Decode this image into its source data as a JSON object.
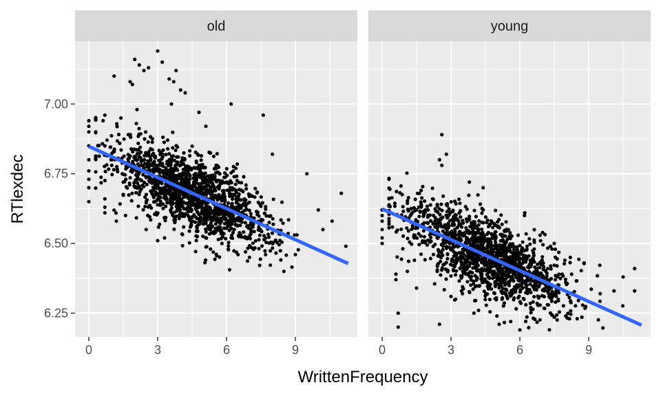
{
  "chart_data": {
    "type": "scatter",
    "xlabel": "WrittenFrequency",
    "ylabel": "RTlexdec",
    "xlim": [
      -0.6,
      11.7
    ],
    "ylim": [
      6.165,
      7.225
    ],
    "x_ticks": [
      0,
      3,
      6,
      9
    ],
    "x_tick_labels": [
      "0",
      "3",
      "6",
      "9"
    ],
    "y_ticks": [
      6.25,
      6.5,
      6.75,
      7.0
    ],
    "y_tick_labels": [
      "6.25",
      "6.50",
      "6.75",
      "7.00"
    ],
    "grid": true,
    "colors": {
      "panel_bg": "#ebebeb",
      "strip_bg": "#d9d9d9",
      "grid": "#ffffff",
      "points": "#000000",
      "fit_line": "#3366ff"
    },
    "panels": [
      {
        "label": "old",
        "fit_line": {
          "x": [
            0,
            11.3
          ],
          "y": [
            6.848,
            6.428
          ]
        },
        "point_cloud": {
          "x_center": 4.6,
          "x_sd": 1.75,
          "y_intercept": 6.848,
          "y_slope": -0.0372,
          "y_sd": 0.068,
          "n": 1500
        },
        "points": [
          [
            0,
            6.94
          ],
          [
            0,
            6.92
          ],
          [
            0,
            6.9
          ],
          [
            0,
            6.85
          ],
          [
            0,
            6.8
          ],
          [
            0,
            6.76
          ],
          [
            0,
            6.73
          ],
          [
            0,
            6.7
          ],
          [
            0,
            6.65
          ],
          [
            0.7,
            6.96
          ],
          [
            0.7,
            6.85
          ],
          [
            0.7,
            6.66
          ],
          [
            0.7,
            6.63
          ],
          [
            0.7,
            6.61
          ],
          [
            1.0,
            6.8
          ],
          [
            1.0,
            6.78
          ],
          [
            1.1,
            7.1
          ],
          [
            1.2,
            6.58
          ],
          [
            1.4,
            6.95
          ],
          [
            1.5,
            6.72
          ],
          [
            1.6,
            6.6
          ],
          [
            1.8,
            7.08
          ],
          [
            1.9,
            7.07
          ],
          [
            2.0,
            7.16
          ],
          [
            2.1,
            6.98
          ],
          [
            2.2,
            7.14
          ],
          [
            2.4,
            7.12
          ],
          [
            2.5,
            6.55
          ],
          [
            2.6,
            7.13
          ],
          [
            3.0,
            7.19
          ],
          [
            3.0,
            6.51
          ],
          [
            3.2,
            7.15
          ],
          [
            3.3,
            6.52
          ],
          [
            3.5,
            7.09
          ],
          [
            3.6,
            7.0
          ],
          [
            3.7,
            7.08
          ],
          [
            3.8,
            7.12
          ],
          [
            4.0,
            7.05
          ],
          [
            4.2,
            7.04
          ],
          [
            4.8,
            6.97
          ],
          [
            5.1,
            6.92
          ],
          [
            5.3,
            6.48
          ],
          [
            5.8,
            6.5
          ],
          [
            6.2,
            7.0
          ],
          [
            6.5,
            6.46
          ],
          [
            7.0,
            6.45
          ],
          [
            7.6,
            6.96
          ],
          [
            7.7,
            6.46
          ],
          [
            8.0,
            6.82
          ],
          [
            8.5,
            6.4
          ],
          [
            9.0,
            6.46
          ],
          [
            9.5,
            6.75
          ],
          [
            10.0,
            6.62
          ],
          [
            10.2,
            6.55
          ],
          [
            10.6,
            6.58
          ],
          [
            11.0,
            6.68
          ],
          [
            11.2,
            6.49
          ]
        ]
      },
      {
        "label": "young",
        "fit_line": {
          "x": [
            0,
            11.3
          ],
          "y": [
            6.624,
            6.207
          ]
        },
        "point_cloud": {
          "x_center": 4.6,
          "x_sd": 1.75,
          "y_intercept": 6.624,
          "y_slope": -0.0369,
          "y_sd": 0.068,
          "n": 1500
        },
        "points": [
          [
            0,
            6.62
          ],
          [
            0,
            6.6
          ],
          [
            0,
            6.58
          ],
          [
            0,
            6.55
          ],
          [
            0,
            6.52
          ],
          [
            0,
            6.5
          ],
          [
            0.6,
            6.39
          ],
          [
            0.6,
            6.37
          ],
          [
            0.7,
            6.25
          ],
          [
            0.7,
            6.2
          ],
          [
            1.1,
            6.4
          ],
          [
            1.2,
            6.58
          ],
          [
            1.4,
            6.52
          ],
          [
            1.5,
            6.62
          ],
          [
            1.5,
            6.34
          ],
          [
            1.7,
            6.69
          ],
          [
            2.0,
            6.62
          ],
          [
            2.2,
            6.66
          ],
          [
            2.4,
            6.4
          ],
          [
            2.5,
            6.21
          ],
          [
            2.5,
            6.8
          ],
          [
            2.6,
            6.78
          ],
          [
            2.6,
            6.89
          ],
          [
            2.8,
            6.82
          ],
          [
            3.0,
            6.31
          ],
          [
            3.2,
            6.3
          ],
          [
            3.5,
            6.32
          ],
          [
            3.8,
            6.72
          ],
          [
            4.0,
            6.25
          ],
          [
            4.2,
            6.26
          ],
          [
            4.4,
            6.7
          ],
          [
            5.0,
            6.24
          ],
          [
            5.1,
            6.21
          ],
          [
            5.6,
            6.22
          ],
          [
            6.0,
            6.19
          ],
          [
            6.2,
            6.6
          ],
          [
            7.2,
            6.28
          ],
          [
            7.4,
            6.48
          ],
          [
            7.5,
            6.5
          ],
          [
            8.0,
            6.24
          ],
          [
            8.2,
            6.45
          ],
          [
            8.5,
            6.23
          ],
          [
            8.8,
            6.43
          ],
          [
            9.5,
            6.32
          ],
          [
            10.1,
            6.33
          ],
          [
            10.5,
            6.38
          ],
          [
            11.0,
            6.41
          ],
          [
            11.0,
            6.33
          ]
        ]
      }
    ]
  }
}
